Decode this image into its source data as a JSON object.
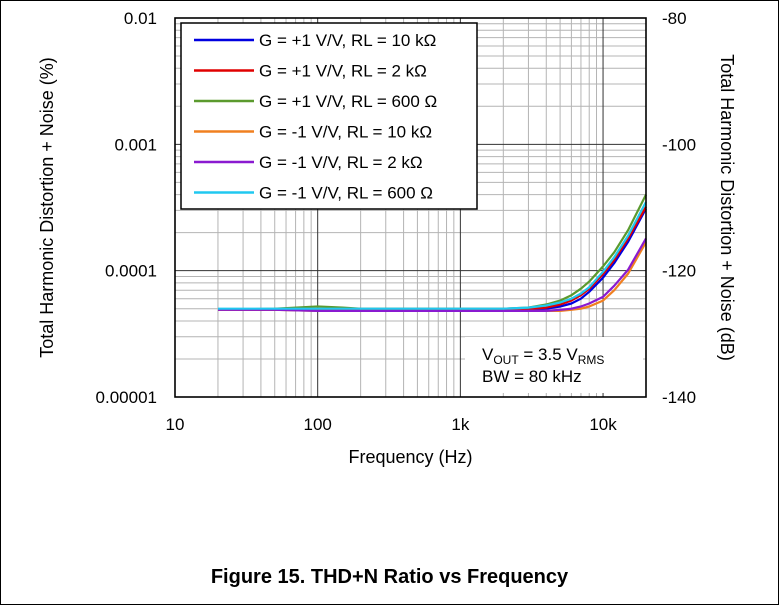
{
  "figure": {
    "caption": "Figure 15. THD+N Ratio vs Frequency"
  },
  "chart_data": {
    "type": "line",
    "x_scale": "log",
    "y_scale": "log",
    "xlabel": "Frequency (Hz)",
    "ylabel": "Total Harmonic Distortion + Noise (%)",
    "y2label": "Total Harmonic Distortion + Noise (dB)",
    "xlim": [
      10,
      20000
    ],
    "ylim": [
      1e-05,
      0.01
    ],
    "y2lim": [
      -140,
      -80
    ],
    "x_ticks": [
      {
        "value": 10,
        "label": "10"
      },
      {
        "value": 100,
        "label": "100"
      },
      {
        "value": 1000,
        "label": "1k"
      },
      {
        "value": 10000,
        "label": "10k"
      }
    ],
    "y_ticks": [
      {
        "value": 0.01,
        "label": "0.01"
      },
      {
        "value": 0.001,
        "label": "0.001"
      },
      {
        "value": 0.0001,
        "label": "0.0001"
      },
      {
        "value": 1e-05,
        "label": "0.00001"
      }
    ],
    "y2_ticks": [
      {
        "value": -80,
        "label": "-80"
      },
      {
        "value": -100,
        "label": "-100"
      },
      {
        "value": -120,
        "label": "-120"
      },
      {
        "value": -140,
        "label": "-140"
      }
    ],
    "grid": true,
    "legend_position": "top-left",
    "annotation": {
      "line1_main": "V",
      "line1_sub1": "OUT",
      "line1_mid": " = 3.5 V",
      "line1_sub2": "RMS",
      "line2": "BW = 80 kHz"
    },
    "series": [
      {
        "name": "G = +1 V/V, RL = 10 kΩ",
        "color": "#0000e0",
        "x": [
          20,
          50,
          100,
          200,
          500,
          1000,
          2000,
          3000,
          4000,
          5000,
          6000,
          7000,
          8000,
          10000,
          12000,
          15000,
          20000
        ],
        "y": [
          4.9e-05,
          4.9e-05,
          4.9e-05,
          4.9e-05,
          4.9e-05,
          4.9e-05,
          4.9e-05,
          4.9e-05,
          5e-05,
          5.2e-05,
          5.5e-05,
          6e-05,
          6.8e-05,
          8.8e-05,
          0.000115,
          0.00017,
          0.00031
        ]
      },
      {
        "name": "G = +1 V/V, RL = 2 kΩ",
        "color": "#e00000",
        "x": [
          20,
          50,
          100,
          200,
          500,
          1000,
          2000,
          3000,
          4000,
          5000,
          6000,
          7000,
          8000,
          10000,
          12000,
          15000,
          20000
        ],
        "y": [
          4.9e-05,
          4.9e-05,
          4.9e-05,
          4.9e-05,
          4.9e-05,
          4.9e-05,
          4.9e-05,
          5e-05,
          5.1e-05,
          5.4e-05,
          5.8e-05,
          6.4e-05,
          7.2e-05,
          9.4e-05,
          0.000122,
          0.00018,
          0.00032
        ]
      },
      {
        "name": "G = +1 V/V, RL = 600 Ω",
        "color": "#5b9a2e",
        "x": [
          20,
          50,
          100,
          150,
          200,
          500,
          1000,
          2000,
          3000,
          4000,
          5000,
          6000,
          7000,
          8000,
          10000,
          12000,
          15000,
          20000
        ],
        "y": [
          4.9e-05,
          5e-05,
          5.2e-05,
          5.1e-05,
          5e-05,
          5e-05,
          5e-05,
          5e-05,
          5.1e-05,
          5.4e-05,
          5.8e-05,
          6.4e-05,
          7.2e-05,
          8.2e-05,
          0.000108,
          0.00014,
          0.00021,
          0.0004
        ]
      },
      {
        "name": "G = -1 V/V, RL = 10 kΩ",
        "color": "#f08020",
        "x": [
          20,
          50,
          100,
          200,
          500,
          1000,
          2000,
          3000,
          4000,
          5000,
          6000,
          7000,
          8000,
          10000,
          12000,
          15000,
          20000
        ],
        "y": [
          4.9e-05,
          4.9e-05,
          4.8e-05,
          4.8e-05,
          4.8e-05,
          4.8e-05,
          4.8e-05,
          4.8e-05,
          4.8e-05,
          4.8e-05,
          4.9e-05,
          5e-05,
          5.2e-05,
          5.8e-05,
          7e-05,
          9.5e-05,
          0.000168
        ]
      },
      {
        "name": "G = -1 V/V, RL = 2 kΩ",
        "color": "#8a1ad0",
        "x": [
          20,
          50,
          100,
          200,
          500,
          1000,
          2000,
          3000,
          4000,
          5000,
          6000,
          7000,
          8000,
          10000,
          12000,
          15000,
          20000
        ],
        "y": [
          4.9e-05,
          4.9e-05,
          4.8e-05,
          4.8e-05,
          4.8e-05,
          4.8e-05,
          4.8e-05,
          4.8e-05,
          4.8e-05,
          4.9e-05,
          5e-05,
          5.2e-05,
          5.5e-05,
          6.2e-05,
          7.6e-05,
          0.000102,
          0.00018
        ]
      },
      {
        "name": "G = -1 V/V, RL = 600 Ω",
        "color": "#20c8f0",
        "x": [
          20,
          50,
          100,
          200,
          500,
          1000,
          2000,
          3000,
          4000,
          5000,
          6000,
          7000,
          8000,
          10000,
          12000,
          15000,
          20000
        ],
        "y": [
          5e-05,
          5e-05,
          5e-05,
          5e-05,
          5e-05,
          5e-05,
          5e-05,
          5.1e-05,
          5.3e-05,
          5.6e-05,
          6e-05,
          6.6e-05,
          7.4e-05,
          9.8e-05,
          0.000128,
          0.00019,
          0.00035
        ]
      }
    ]
  }
}
